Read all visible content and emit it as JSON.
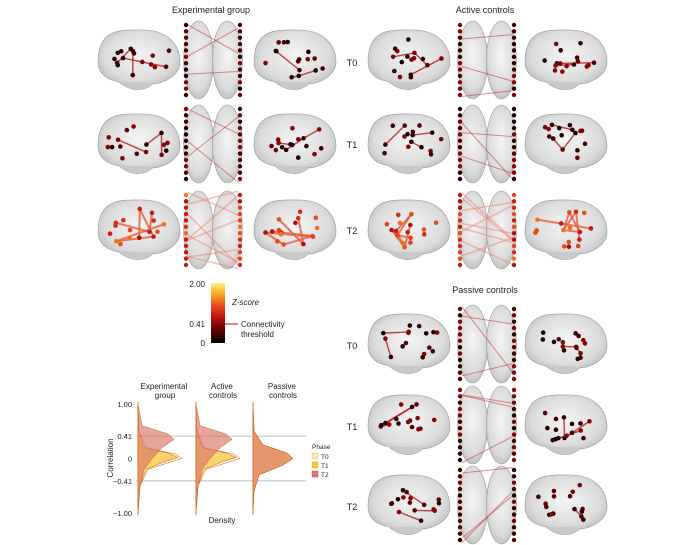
{
  "groups": [
    {
      "title": "Experimental group",
      "rows": [
        "",
        "",
        ""
      ]
    },
    {
      "title": "Active controls",
      "rows": [
        "T0",
        "T1",
        "T2"
      ]
    },
    {
      "title": "Passive controls",
      "rows": [
        "T0",
        "T1",
        "T2"
      ]
    }
  ],
  "colorbar": {
    "max_label": "2.00",
    "threshold_label": "0.41",
    "min_label": "0",
    "axis_label": "Z-score",
    "threshold_text_line1": "Connectivity",
    "threshold_text_line2": "threshold",
    "colors": [
      "#000000",
      "#5a0000",
      "#b01010",
      "#e8401a",
      "#f48a1e",
      "#f8c43a",
      "#fff07a"
    ]
  },
  "chart_data": {
    "type": "area",
    "orientation": "horizontal-density",
    "panels": [
      "Experimental group",
      "Active controls",
      "Passive controls"
    ],
    "ylabel": "Correlation",
    "xlabel": "Density",
    "yticks": [
      "1.00",
      "0.41",
      "0",
      "−0.41",
      "−1.00"
    ],
    "ytick_values": [
      1.0,
      0.41,
      0,
      -0.41,
      -1.0
    ],
    "ylim": [
      -1.0,
      1.0
    ],
    "reference_lines": [
      0.41,
      -0.41
    ],
    "legend": {
      "title": "Phase",
      "entries": [
        "T0",
        "T1",
        "T2"
      ],
      "placement": "right"
    },
    "series_colors": {
      "T0": "#fde7b0",
      "T1": "#f6c33a",
      "T2": "#d9776a"
    }
  }
}
